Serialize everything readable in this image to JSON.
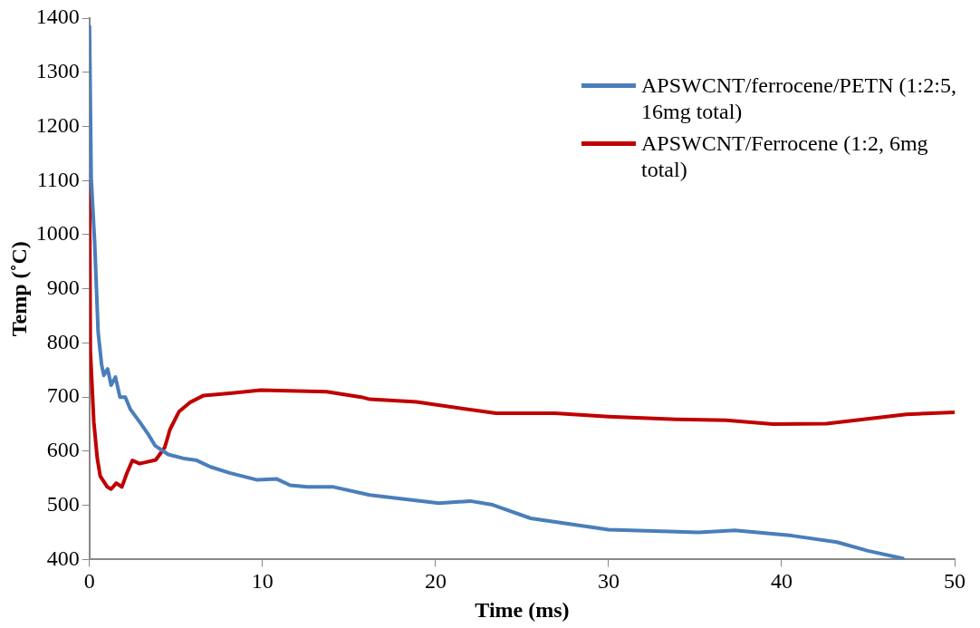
{
  "chart_data": {
    "type": "line",
    "xlabel": "Time (ms)",
    "ylabel": "Temp (˚C)",
    "xlim": [
      0,
      50
    ],
    "xticks": [
      0,
      10,
      20,
      30,
      40,
      50
    ],
    "ylim": [
      400,
      1400
    ],
    "yticks": [
      400,
      500,
      600,
      700,
      800,
      900,
      1000,
      1100,
      1200,
      1300,
      1400
    ],
    "grid": false,
    "legend": "top right",
    "marker": "none",
    "line_style": "solid",
    "series": [
      {
        "name": "APSWCNT/ferrocene/PETN (1:2:5, 16mg total)",
        "color": "#4a7ebb",
        "x": [
          0,
          0.1,
          0.3,
          0.5,
          0.7,
          0.83,
          1.05,
          1.25,
          1.5,
          1.76,
          2.07,
          2.37,
          2.9,
          3.4,
          3.8,
          4.55,
          5.4,
          6.2,
          7,
          8.1,
          9.7,
          10.8,
          11.6,
          12.6,
          14.1,
          16.2,
          17.3,
          20.2,
          22,
          23.3,
          25.5,
          30,
          35.2,
          37.3,
          40.6,
          43.2,
          45,
          47
        ],
        "values": [
          1385,
          1104,
          985,
          820,
          760,
          740,
          752,
          722,
          737,
          700,
          700,
          677,
          654,
          631,
          610,
          594,
          587,
          583,
          571,
          560,
          547,
          549,
          537,
          534,
          534,
          519,
          515,
          504,
          508,
          501,
          476,
          455,
          450,
          454,
          444,
          432,
          416,
          402
        ]
      },
      {
        "name": "APSWCNT/Ferrocene (1:2, 6mg total)",
        "color": "#c00000",
        "x": [
          0,
          0.05,
          0.25,
          0.45,
          0.62,
          1.03,
          1.25,
          1.55,
          1.87,
          2.17,
          2.48,
          2.9,
          3.3,
          3.83,
          4.35,
          4.65,
          5.17,
          5.8,
          6.6,
          8.1,
          9.9,
          13.7,
          15.7,
          16.2,
          18.9,
          23.5,
          26.9,
          30,
          33.9,
          36.8,
          39.5,
          42.6,
          47.2,
          50
        ],
        "values": [
          1097,
          786,
          654,
          587,
          554,
          534,
          530,
          541,
          534,
          560,
          583,
          577,
          580,
          584,
          607,
          640,
          673,
          690,
          703,
          707,
          713,
          710,
          700,
          696,
          691,
          670,
          670,
          664,
          659,
          657,
          650,
          651,
          668,
          672
        ]
      }
    ]
  }
}
